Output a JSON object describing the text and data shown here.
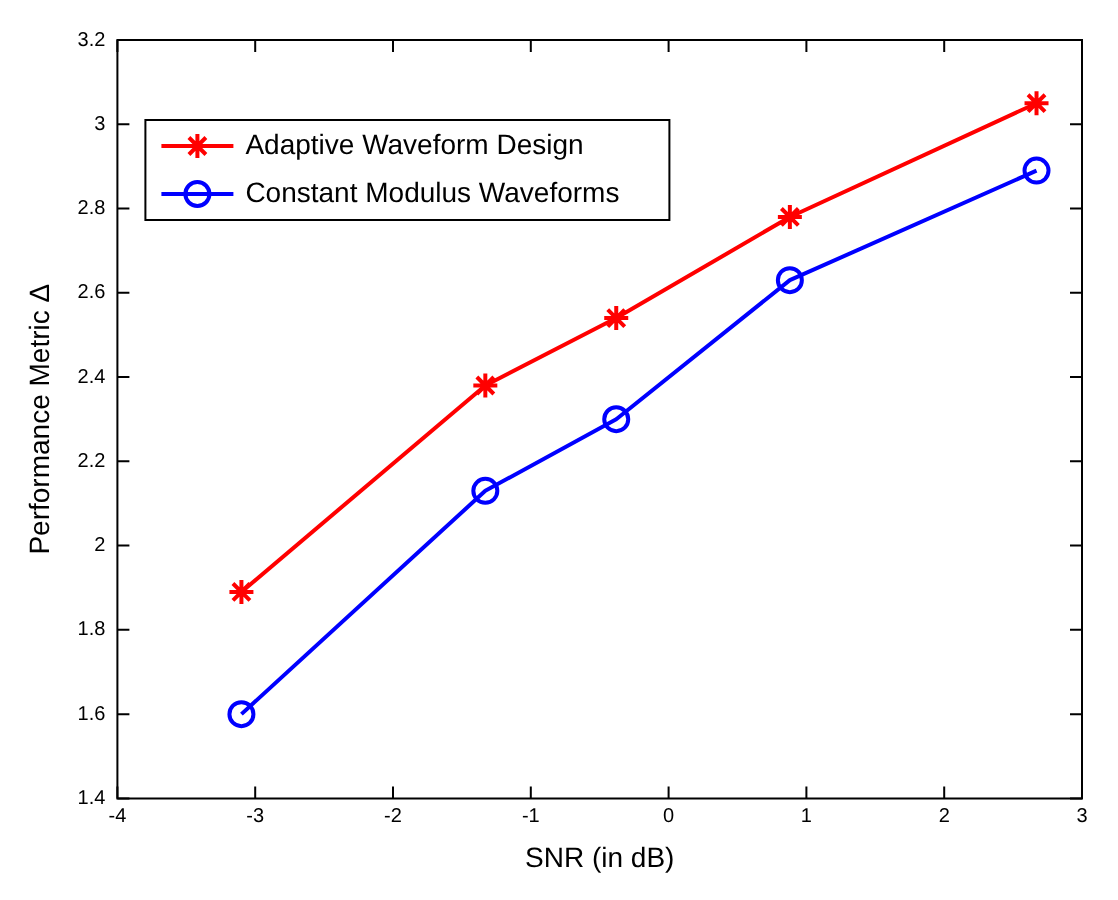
{
  "chart_data": {
    "type": "line",
    "xlabel": "SNR (in dB)",
    "ylabel": "Performance Metric Δ",
    "x": [
      -3.1,
      -1.33,
      -0.38,
      0.88,
      2.67
    ],
    "series": [
      {
        "name": "Adaptive Waveform Design",
        "color": "#ff0000",
        "marker": "cross",
        "values": [
          1.89,
          2.38,
          2.54,
          2.78,
          3.05
        ]
      },
      {
        "name": "Constant Modulus Waveforms",
        "color": "#0000ff",
        "marker": "circle",
        "values": [
          1.6,
          2.13,
          2.3,
          2.63,
          2.89
        ]
      }
    ],
    "xlim": [
      -4,
      3
    ],
    "xticks": [
      -4,
      -3,
      -2,
      -1,
      0,
      1,
      2,
      3
    ],
    "ylim": [
      1.4,
      3.2
    ],
    "yticks": [
      1.4,
      1.6,
      1.8,
      2,
      2.2,
      2.4,
      2.6,
      2.8,
      3,
      3.2
    ],
    "grid": false,
    "legend": "top left",
    "line_style": "solid"
  }
}
